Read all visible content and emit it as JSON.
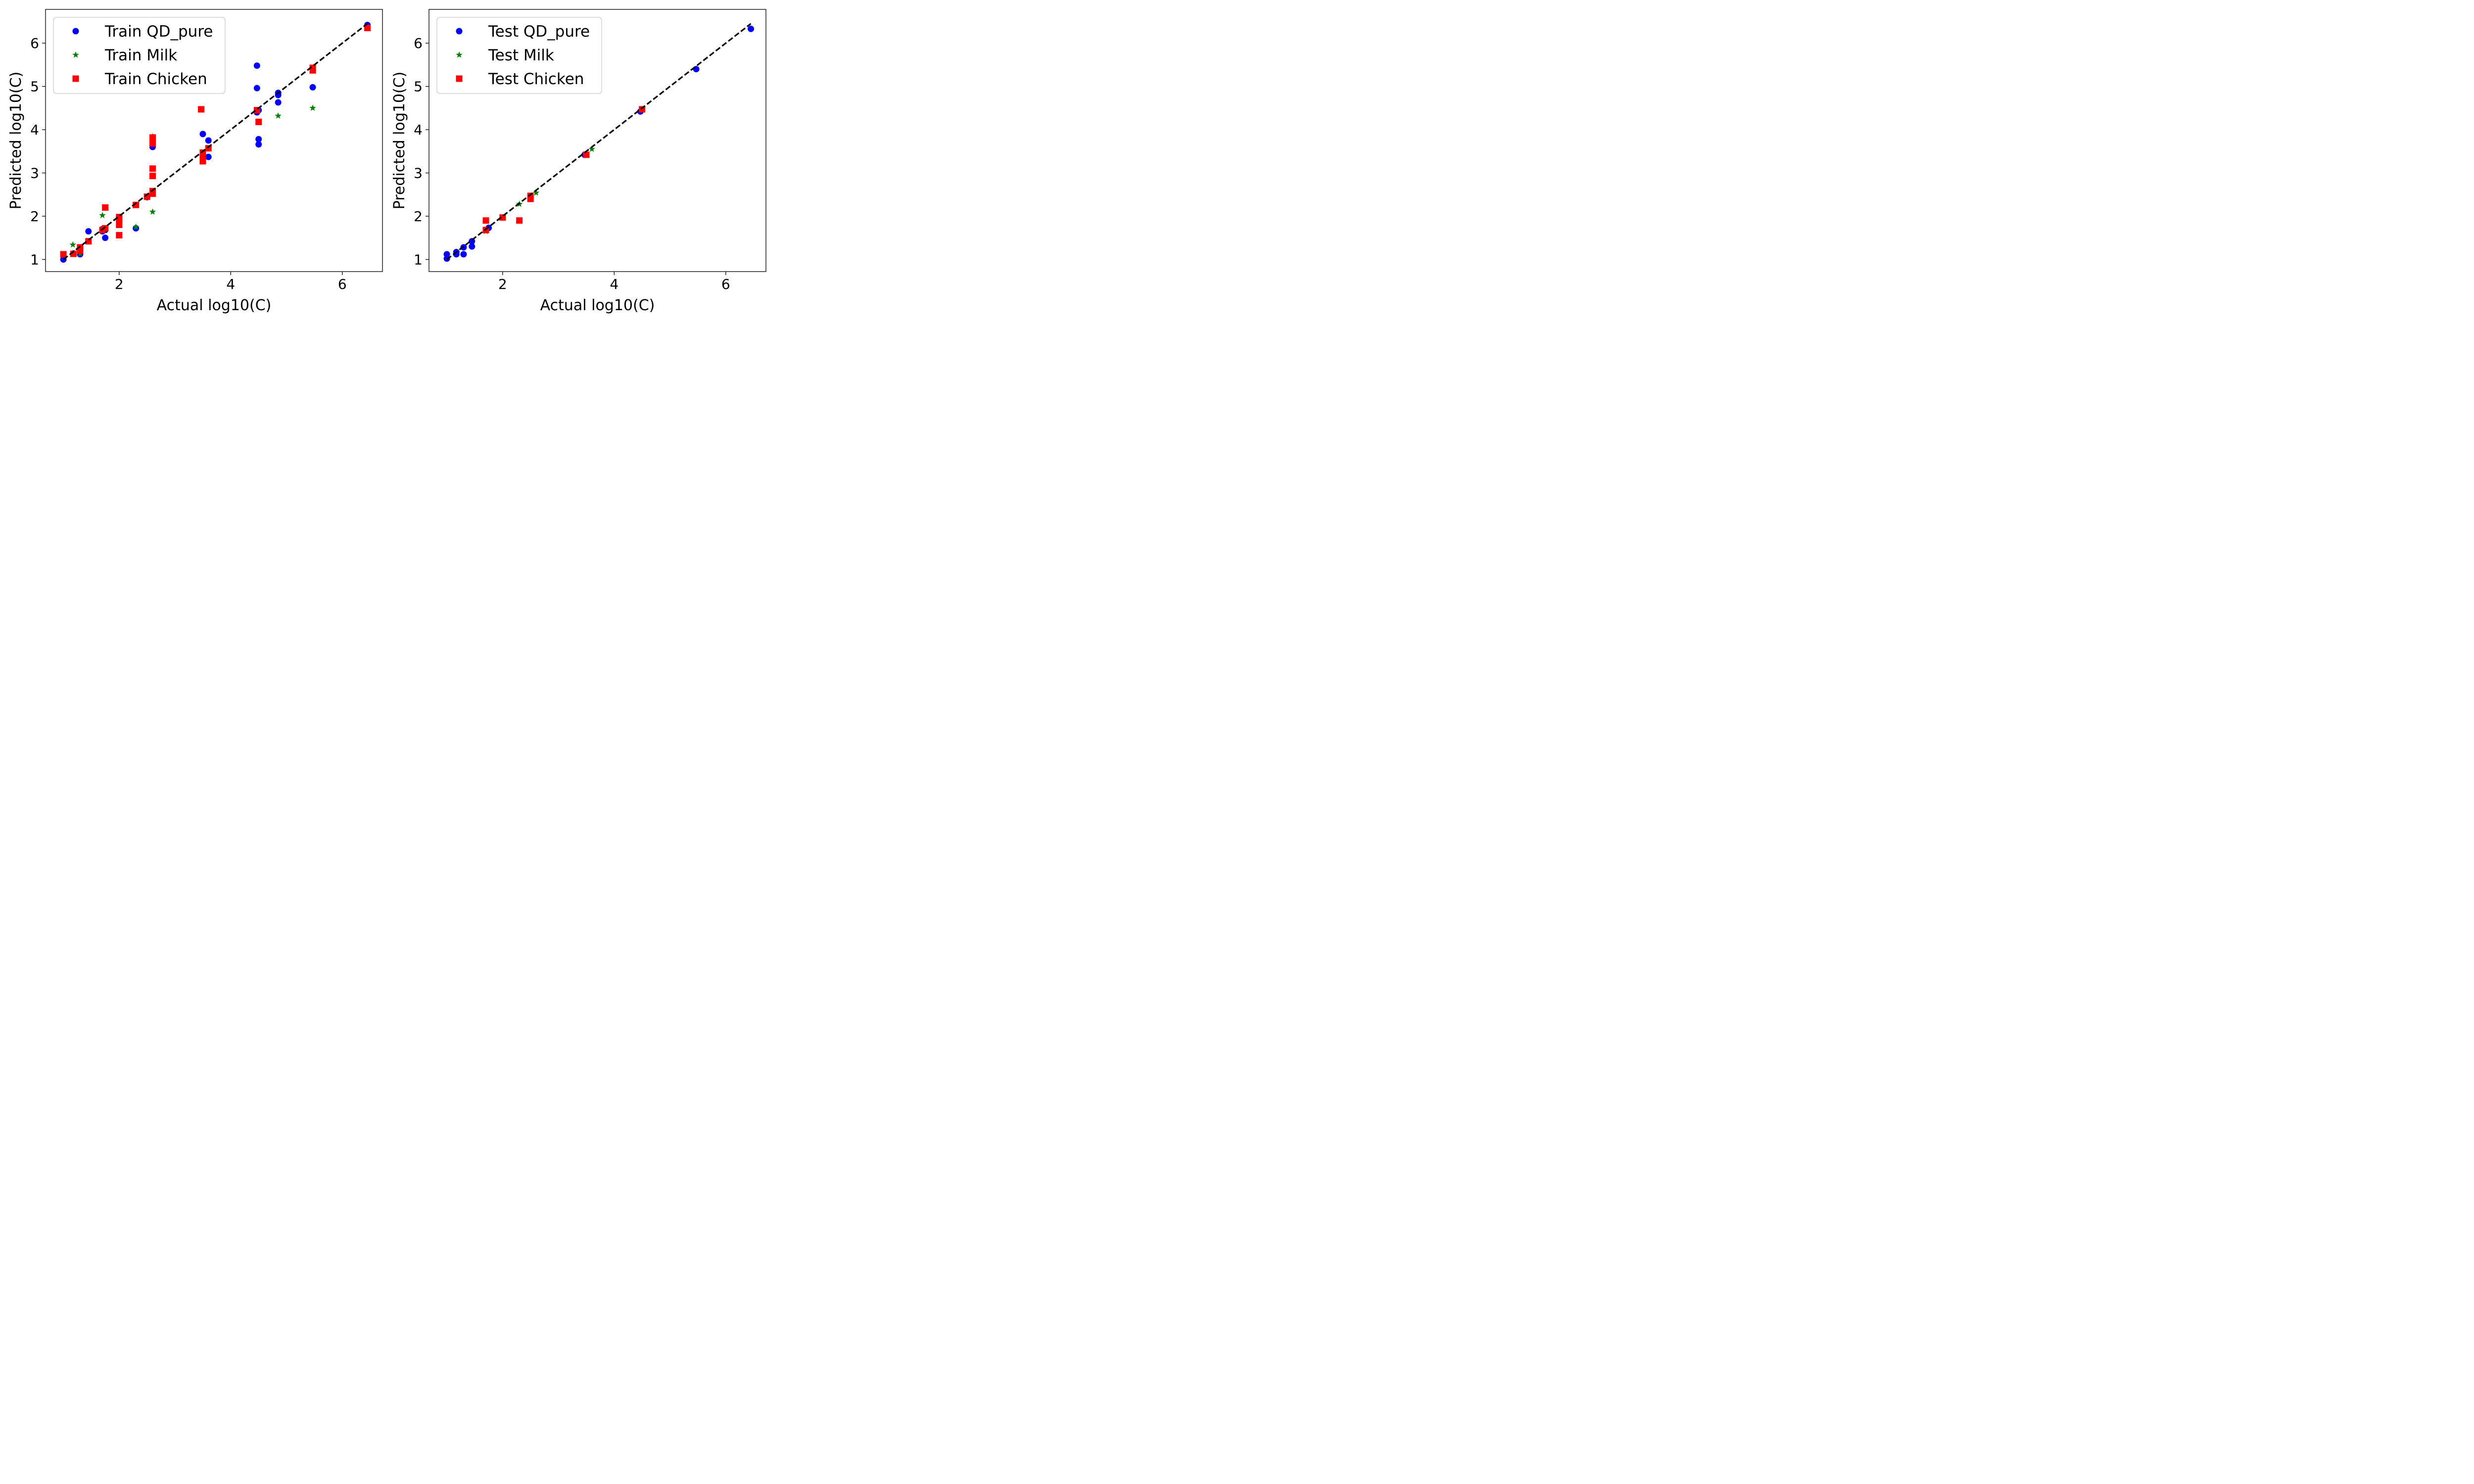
{
  "colors": {
    "Train QD_pure": "#0000ff",
    "Train Milk": "#008000",
    "Train Chicken": "#ff0000",
    "Test QD_pure": "#0000ff",
    "Test Milk": "#008000",
    "Test Chicken": "#ff0000",
    "reference_line": "#000000"
  },
  "chart_data": [
    {
      "type": "scatter",
      "xlabel": "Actual log10(C)",
      "ylabel": "Predicted log10(C)",
      "xlim": [
        0.68,
        6.72
      ],
      "ylim": [
        0.72,
        6.78
      ],
      "xticks": [
        2,
        4,
        6
      ],
      "yticks": [
        1,
        2,
        3,
        4,
        5,
        6
      ],
      "grid": false,
      "legend_position": "top-left",
      "reference_line": {
        "style": "dashed",
        "from": [
          1.0,
          1.0
        ],
        "to": [
          6.45,
          6.45
        ]
      },
      "series": [
        {
          "name": "Train QD_pure",
          "marker": "circle",
          "points": [
            [
              1.0,
              1.0
            ],
            [
              1.18,
              1.14
            ],
            [
              1.3,
              1.12
            ],
            [
              1.3,
              1.25
            ],
            [
              1.45,
              1.65
            ],
            [
              1.7,
              1.7
            ],
            [
              1.7,
              1.65
            ],
            [
              1.75,
              1.68
            ],
            [
              1.75,
              1.5
            ],
            [
              2.3,
              1.72
            ],
            [
              2.5,
              2.44
            ],
            [
              2.6,
              3.6
            ],
            [
              3.5,
              3.9
            ],
            [
              3.6,
              3.75
            ],
            [
              3.6,
              3.37
            ],
            [
              4.47,
              5.48
            ],
            [
              4.47,
              4.96
            ],
            [
              4.47,
              4.4
            ],
            [
              4.5,
              4.45
            ],
            [
              4.5,
              3.78
            ],
            [
              4.5,
              3.66
            ],
            [
              4.85,
              4.85
            ],
            [
              4.85,
              4.8
            ],
            [
              4.85,
              4.63
            ],
            [
              5.47,
              4.98
            ],
            [
              6.45,
              6.42
            ]
          ]
        },
        {
          "name": "Train Milk",
          "marker": "star",
          "points": [
            [
              1.17,
              1.34
            ],
            [
              1.3,
              1.13
            ],
            [
              1.7,
              2.02
            ],
            [
              2.3,
              1.75
            ],
            [
              2.6,
              2.1
            ],
            [
              2.6,
              3.84
            ],
            [
              4.85,
              4.32
            ],
            [
              5.47,
              4.5
            ],
            [
              6.45,
              6.38
            ]
          ]
        },
        {
          "name": "Train Chicken",
          "marker": "square",
          "points": [
            [
              1.0,
              1.12
            ],
            [
              1.18,
              1.13
            ],
            [
              1.3,
              1.2
            ],
            [
              1.3,
              1.28
            ],
            [
              1.45,
              1.42
            ],
            [
              1.7,
              1.68
            ],
            [
              1.75,
              1.72
            ],
            [
              1.75,
              2.2
            ],
            [
              2.0,
              1.98
            ],
            [
              2.0,
              1.92
            ],
            [
              2.0,
              1.8
            ],
            [
              2.0,
              1.56
            ],
            [
              2.3,
              2.26
            ],
            [
              2.5,
              2.45
            ],
            [
              2.6,
              2.52
            ],
            [
              2.6,
              2.58
            ],
            [
              2.6,
              2.93
            ],
            [
              2.6,
              3.1
            ],
            [
              2.6,
              3.68
            ],
            [
              2.6,
              3.75
            ],
            [
              2.6,
              3.82
            ],
            [
              3.47,
              4.47
            ],
            [
              3.5,
              3.47
            ],
            [
              3.5,
              3.38
            ],
            [
              3.5,
              3.27
            ],
            [
              3.6,
              3.57
            ],
            [
              4.47,
              4.45
            ],
            [
              4.5,
              4.18
            ],
            [
              5.47,
              5.43
            ],
            [
              5.47,
              5.37
            ],
            [
              6.45,
              6.35
            ]
          ]
        }
      ]
    },
    {
      "type": "scatter",
      "xlabel": "Actual log10(C)",
      "ylabel": "Predicted log10(C)",
      "xlim": [
        0.68,
        6.72
      ],
      "ylim": [
        0.72,
        6.78
      ],
      "xticks": [
        2,
        4,
        6
      ],
      "yticks": [
        1,
        2,
        3,
        4,
        5,
        6
      ],
      "grid": false,
      "legend_position": "top-left",
      "reference_line": {
        "style": "dashed",
        "from": [
          1.0,
          1.0
        ],
        "to": [
          6.45,
          6.45
        ]
      },
      "series": [
        {
          "name": "Test QD_pure",
          "marker": "circle",
          "points": [
            [
              1.0,
              1.02
            ],
            [
              1.0,
              1.12
            ],
            [
              1.17,
              1.12
            ],
            [
              1.17,
              1.17
            ],
            [
              1.3,
              1.12
            ],
            [
              1.3,
              1.28
            ],
            [
              1.45,
              1.3
            ],
            [
              1.45,
              1.42
            ],
            [
              1.75,
              1.73
            ],
            [
              3.47,
              3.42
            ],
            [
              4.47,
              4.42
            ],
            [
              5.47,
              5.4
            ],
            [
              6.45,
              6.33
            ]
          ]
        },
        {
          "name": "Test Milk",
          "marker": "star",
          "points": [
            [
              1.7,
              1.65
            ],
            [
              2.3,
              2.28
            ],
            [
              2.6,
              2.54
            ],
            [
              3.6,
              3.55
            ]
          ]
        },
        {
          "name": "Test Chicken",
          "marker": "square",
          "points": [
            [
              1.7,
              1.68
            ],
            [
              1.7,
              1.9
            ],
            [
              2.0,
              1.97
            ],
            [
              2.3,
              1.9
            ],
            [
              2.5,
              2.4
            ],
            [
              2.5,
              2.47
            ],
            [
              3.5,
              3.42
            ],
            [
              4.5,
              4.47
            ]
          ]
        }
      ]
    }
  ]
}
